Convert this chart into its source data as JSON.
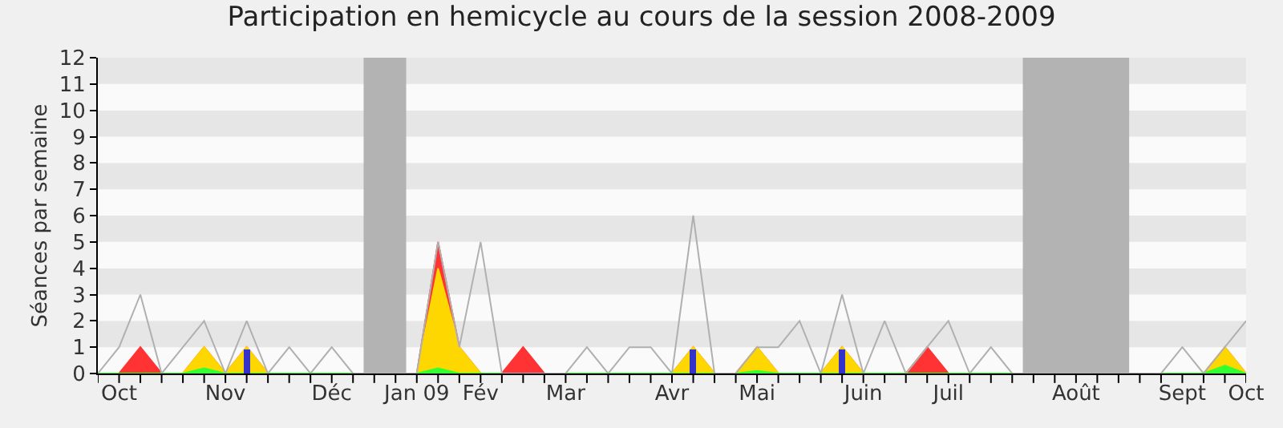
{
  "chart_data": {
    "type": "area",
    "title": "Participation en hemicycle au cours de la session 2008-2009",
    "ylabel": "Séances par semaine",
    "categories": [
      null,
      "Oct",
      null,
      null,
      null,
      null,
      "Nov",
      null,
      null,
      null,
      null,
      "Déc",
      null,
      null,
      null,
      "Jan 09",
      null,
      null,
      "Fév",
      null,
      null,
      null,
      "Mar",
      null,
      null,
      null,
      null,
      "Avr",
      null,
      null,
      null,
      "Mai",
      null,
      null,
      null,
      null,
      "Juin",
      null,
      null,
      null,
      "Juil",
      null,
      null,
      null,
      null,
      null,
      "Août",
      null,
      null,
      null,
      null,
      "Sept",
      null,
      null,
      "Oct"
    ],
    "series": [
      {
        "color": "#ff3333",
        "values": [
          0,
          0,
          1,
          0,
          0,
          1,
          0,
          1,
          0,
          0,
          0,
          0,
          0,
          0,
          0,
          0,
          5,
          1,
          0,
          0,
          1,
          0,
          0,
          0,
          0,
          0,
          0,
          0,
          1,
          0,
          0,
          1,
          0,
          0,
          0,
          1,
          0,
          0,
          0,
          1,
          0,
          0,
          0,
          0,
          0,
          0,
          0,
          0,
          0,
          0,
          0,
          0,
          0,
          1,
          0
        ]
      },
      {
        "color": "#ffd700",
        "values": [
          0,
          0,
          0,
          0,
          0,
          1,
          0,
          1,
          0,
          0,
          0,
          0,
          0,
          0,
          0,
          0,
          4,
          1,
          0,
          0,
          0,
          0,
          0,
          0,
          0,
          0,
          0,
          0,
          1,
          0,
          0,
          1,
          0,
          0,
          0,
          1,
          0,
          0,
          0,
          0,
          0,
          0,
          0,
          0,
          0,
          0,
          0,
          0,
          0,
          0,
          0,
          0,
          0,
          1,
          0
        ]
      },
      {
        "color": "#33ff33",
        "values": [
          0,
          0,
          0,
          0,
          0,
          0.2,
          0,
          0,
          0,
          0,
          0,
          0,
          0,
          0,
          0,
          0,
          0.2,
          0,
          0,
          0,
          0,
          0,
          0,
          0,
          0,
          0,
          0,
          0,
          0,
          0,
          0,
          0.1,
          0,
          0,
          0,
          0,
          0,
          0,
          0,
          0,
          0,
          0,
          0,
          0,
          0,
          0,
          0,
          0,
          0,
          0,
          0,
          0,
          0,
          0.3,
          0
        ]
      },
      {
        "type": "bar",
        "color": "#3333cc",
        "values": [
          null,
          null,
          null,
          null,
          null,
          null,
          null,
          0.9,
          null,
          null,
          null,
          null,
          null,
          null,
          null,
          null,
          null,
          null,
          null,
          null,
          null,
          null,
          null,
          null,
          null,
          null,
          null,
          null,
          0.9,
          null,
          null,
          null,
          null,
          null,
          null,
          0.9,
          null,
          null,
          null,
          null,
          null,
          null,
          null,
          null,
          null,
          null,
          null,
          null,
          null,
          null,
          null,
          null,
          null,
          null,
          null
        ]
      },
      {
        "type": "line",
        "color": "#b0b0b0",
        "values": [
          0,
          1,
          3,
          0,
          1,
          2,
          0,
          2,
          0,
          1,
          0,
          1,
          0,
          0,
          0,
          0,
          5,
          1,
          5,
          0,
          0,
          0,
          0,
          1,
          0,
          1,
          1,
          0,
          6,
          0,
          0,
          1,
          1,
          2,
          0,
          3,
          0,
          2,
          0,
          1,
          2,
          0,
          1,
          0,
          0,
          0,
          0,
          0,
          0,
          0,
          0,
          1,
          0,
          1,
          2
        ]
      }
    ],
    "ylim": [
      0,
      12
    ],
    "yticks": [
      0,
      1,
      2,
      3,
      4,
      5,
      6,
      7,
      8,
      9,
      10,
      11,
      12
    ]
  }
}
